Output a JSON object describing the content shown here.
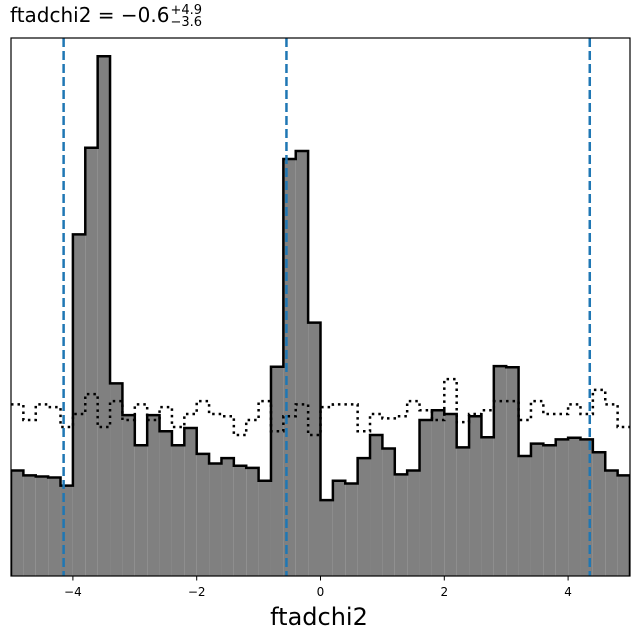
{
  "chart_data": {
    "type": "histogram",
    "title": {
      "prefix": "ftadchi2 = −0.6",
      "sup": "+4.9",
      "sub": "−3.6"
    },
    "xlabel": "ftadchi2",
    "ylabel": "",
    "xlim": [
      -5,
      5
    ],
    "ylim": [
      0,
      1
    ],
    "y_ticks_shown": false,
    "x_ticks": [
      -4,
      -2,
      0,
      2,
      4
    ],
    "x_tick_labels": [
      "−4",
      "−2",
      "0",
      "2",
      "4"
    ],
    "bins": {
      "start": -5,
      "width": 0.2,
      "count": 50
    },
    "series": [
      {
        "style": "filled-step",
        "fill": "#808080",
        "edge": "#000000",
        "values": [
          0.196,
          0.187,
          0.185,
          0.183,
          0.168,
          0.635,
          0.796,
          0.966,
          0.358,
          0.299,
          0.243,
          0.299,
          0.269,
          0.243,
          0.275,
          0.227,
          0.209,
          0.219,
          0.205,
          0.201,
          0.177,
          0.389,
          0.775,
          0.79,
          0.471,
          0.141,
          0.177,
          0.172,
          0.219,
          0.262,
          0.237,
          0.189,
          0.196,
          0.29,
          0.308,
          0.301,
          0.239,
          0.297,
          0.258,
          0.39,
          0.388,
          0.223,
          0.246,
          0.243,
          0.254,
          0.257,
          0.254,
          0.23,
          0.196,
          0.187
        ]
      },
      {
        "style": "dotted-step",
        "edge": "#000000",
        "values": [
          0.319,
          0.29,
          0.319,
          0.314,
          0.277,
          0.301,
          0.338,
          0.277,
          0.325,
          0.29,
          0.319,
          0.29,
          0.314,
          0.277,
          0.301,
          0.325,
          0.301,
          0.297,
          0.262,
          0.29,
          0.325,
          0.269,
          0.297,
          0.319,
          0.262,
          0.314,
          0.319,
          0.319,
          0.269,
          0.301,
          0.293,
          0.297,
          0.325,
          0.308,
          0.29,
          0.366,
          0.286,
          0.301,
          0.308,
          0.325,
          0.325,
          0.29,
          0.325,
          0.301,
          0.301,
          0.319,
          0.301,
          0.346,
          0.319,
          0.277
        ]
      }
    ],
    "vlines": [
      -4.15,
      -0.55,
      4.35
    ],
    "vline_style": {
      "color": "#1f77b4",
      "dash": "dashed"
    }
  }
}
